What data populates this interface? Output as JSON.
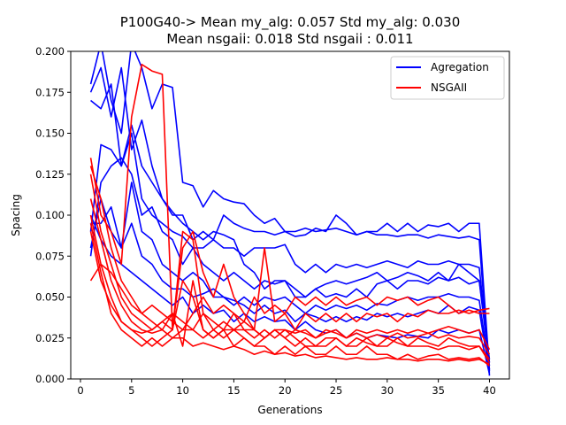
{
  "chart_data": {
    "type": "line",
    "title_lines": [
      "P100G40-> Mean my_alg: 0.057 Std my_alg: 0.030",
      "Mean nsgaii: 0.018 Std nsgaii : 0.011"
    ],
    "xlabel": "Generations",
    "ylabel": "Spacing",
    "xlim": [
      -0.95,
      41.95
    ],
    "ylim": [
      0.0,
      0.2
    ],
    "x_ticks": [
      0,
      5,
      10,
      15,
      20,
      25,
      30,
      35,
      40
    ],
    "x_tick_labels": [
      "0",
      "5",
      "10",
      "15",
      "20",
      "25",
      "30",
      "35",
      "40"
    ],
    "y_ticks": [
      0.0,
      0.025,
      0.05,
      0.075,
      0.1,
      0.125,
      0.15,
      0.175,
      0.2
    ],
    "y_tick_labels": [
      "0.000",
      "0.025",
      "0.050",
      "0.075",
      "0.100",
      "0.125",
      "0.150",
      "0.175",
      "0.200"
    ],
    "legend": [
      {
        "name": "Agregation",
        "color": "#0000ff"
      },
      {
        "name": "NSGAII",
        "color": "#ff0000"
      }
    ],
    "legend_position": "top-right",
    "x": [
      1,
      2,
      3,
      4,
      5,
      6,
      7,
      8,
      9,
      10,
      11,
      12,
      13,
      14,
      15,
      16,
      17,
      18,
      19,
      20,
      21,
      22,
      23,
      24,
      25,
      26,
      27,
      28,
      29,
      30,
      31,
      32,
      33,
      34,
      35,
      36,
      37,
      38,
      39,
      40
    ],
    "series": [
      {
        "name": "Agregation",
        "color": "#0000ff",
        "values": [
          0.18,
          0.205,
          0.17,
          0.15,
          0.205,
          0.19,
          0.165,
          0.18,
          0.178,
          0.12,
          0.118,
          0.105,
          0.115,
          0.11,
          0.108,
          0.107,
          0.1,
          0.095,
          0.098,
          0.09,
          0.09,
          0.092,
          0.09,
          0.091,
          0.092,
          0.09,
          0.088,
          0.09,
          0.088,
          0.088,
          0.087,
          0.088,
          0.088,
          0.086,
          0.088,
          0.087,
          0.086,
          0.087,
          0.085,
          0.002
        ]
      },
      {
        "name": "Agregation",
        "color": "#0000ff",
        "values": [
          0.175,
          0.19,
          0.16,
          0.19,
          0.14,
          0.158,
          0.13,
          0.11,
          0.1,
          0.1,
          0.085,
          0.09,
          0.085,
          0.1,
          0.095,
          0.092,
          0.09,
          0.09,
          0.088,
          0.09,
          0.087,
          0.088,
          0.092,
          0.09,
          0.1,
          0.095,
          0.088,
          0.09,
          0.09,
          0.095,
          0.09,
          0.095,
          0.09,
          0.094,
          0.093,
          0.095,
          0.09,
          0.095,
          0.095,
          0.005
        ]
      },
      {
        "name": "Agregation",
        "color": "#0000ff",
        "values": [
          0.17,
          0.165,
          0.18,
          0.13,
          0.15,
          0.11,
          0.1,
          0.095,
          0.09,
          0.087,
          0.08,
          0.08,
          0.085,
          0.08,
          0.08,
          0.075,
          0.08,
          0.08,
          0.08,
          0.082,
          0.07,
          0.065,
          0.07,
          0.065,
          0.07,
          0.068,
          0.07,
          0.068,
          0.07,
          0.072,
          0.07,
          0.068,
          0.072,
          0.07,
          0.07,
          0.072,
          0.07,
          0.07,
          0.068,
          0.01
        ]
      },
      {
        "name": "Agregation",
        "color": "#0000ff",
        "values": [
          0.09,
          0.143,
          0.14,
          0.13,
          0.155,
          0.13,
          0.12,
          0.11,
          0.102,
          0.095,
          0.09,
          0.085,
          0.09,
          0.088,
          0.085,
          0.07,
          0.065,
          0.055,
          0.06,
          0.06,
          0.055,
          0.05,
          0.055,
          0.058,
          0.06,
          0.058,
          0.06,
          0.062,
          0.065,
          0.06,
          0.062,
          0.065,
          0.063,
          0.06,
          0.065,
          0.06,
          0.07,
          0.065,
          0.06,
          0.008
        ]
      },
      {
        "name": "Agregation",
        "color": "#0000ff",
        "values": [
          0.075,
          0.12,
          0.13,
          0.135,
          0.125,
          0.1,
          0.105,
          0.09,
          0.085,
          0.07,
          0.08,
          0.07,
          0.065,
          0.06,
          0.065,
          0.06,
          0.055,
          0.06,
          0.058,
          0.06,
          0.05,
          0.05,
          0.055,
          0.05,
          0.052,
          0.05,
          0.055,
          0.05,
          0.058,
          0.06,
          0.055,
          0.06,
          0.06,
          0.058,
          0.062,
          0.06,
          0.062,
          0.058,
          0.06,
          0.012
        ]
      },
      {
        "name": "Agregation",
        "color": "#0000ff",
        "values": [
          0.08,
          0.11,
          0.09,
          0.08,
          0.12,
          0.09,
          0.085,
          0.07,
          0.065,
          0.06,
          0.065,
          0.06,
          0.05,
          0.05,
          0.045,
          0.05,
          0.045,
          0.05,
          0.048,
          0.05,
          0.045,
          0.04,
          0.045,
          0.042,
          0.045,
          0.043,
          0.045,
          0.042,
          0.046,
          0.045,
          0.048,
          0.05,
          0.048,
          0.05,
          0.05,
          0.052,
          0.05,
          0.05,
          0.048,
          0.006
        ]
      },
      {
        "name": "Agregation",
        "color": "#0000ff",
        "values": [
          0.095,
          0.095,
          0.105,
          0.08,
          0.095,
          0.075,
          0.07,
          0.06,
          0.055,
          0.055,
          0.05,
          0.052,
          0.055,
          0.05,
          0.048,
          0.045,
          0.04,
          0.045,
          0.04,
          0.042,
          0.035,
          0.04,
          0.038,
          0.035,
          0.038,
          0.035,
          0.038,
          0.036,
          0.04,
          0.038,
          0.04,
          0.038,
          0.04,
          0.042,
          0.04,
          0.045,
          0.04,
          0.044,
          0.042,
          0.004
        ]
      },
      {
        "name": "Agregation",
        "color": "#0000ff",
        "values": [
          0.1,
          0.085,
          0.075,
          0.07,
          0.065,
          0.06,
          0.055,
          0.05,
          0.045,
          0.05,
          0.04,
          0.045,
          0.04,
          0.042,
          0.035,
          0.04,
          0.035,
          0.038,
          0.035,
          0.036,
          0.03,
          0.035,
          0.03,
          0.028,
          0.03,
          0.025,
          0.028,
          0.025,
          0.027,
          0.026,
          0.025,
          0.027,
          0.026,
          0.025,
          0.03,
          0.028,
          0.03,
          0.028,
          0.03,
          0.003
        ]
      },
      {
        "name": "NSGAII",
        "color": "#ff0000",
        "values": [
          0.135,
          0.1,
          0.09,
          0.07,
          0.16,
          0.192,
          0.188,
          0.186,
          0.03,
          0.09,
          0.085,
          0.04,
          0.035,
          0.03,
          0.03,
          0.03,
          0.03,
          0.025,
          0.03,
          0.03,
          0.025,
          0.02,
          0.02,
          0.025,
          0.025,
          0.02,
          0.025,
          0.022,
          0.02,
          0.025,
          0.022,
          0.02,
          0.025,
          0.022,
          0.02,
          0.025,
          0.022,
          0.02,
          0.02,
          0.01
        ]
      },
      {
        "name": "NSGAII",
        "color": "#ff0000",
        "values": [
          0.13,
          0.11,
          0.08,
          0.06,
          0.05,
          0.04,
          0.045,
          0.04,
          0.035,
          0.03,
          0.03,
          0.025,
          0.03,
          0.025,
          0.03,
          0.025,
          0.02,
          0.025,
          0.03,
          0.025,
          0.02,
          0.025,
          0.02,
          0.02,
          0.025,
          0.02,
          0.02,
          0.025,
          0.02,
          0.02,
          0.025,
          0.02,
          0.02,
          0.02,
          0.018,
          0.02,
          0.02,
          0.018,
          0.02,
          0.012
        ]
      },
      {
        "name": "NSGAII",
        "color": "#ff0000",
        "values": [
          0.125,
          0.09,
          0.07,
          0.05,
          0.04,
          0.035,
          0.03,
          0.035,
          0.04,
          0.02,
          0.06,
          0.03,
          0.025,
          0.03,
          0.02,
          0.025,
          0.02,
          0.02,
          0.015,
          0.02,
          0.015,
          0.02,
          0.015,
          0.015,
          0.02,
          0.015,
          0.015,
          0.02,
          0.015,
          0.015,
          0.012,
          0.015,
          0.012,
          0.014,
          0.015,
          0.012,
          0.013,
          0.012,
          0.013,
          0.008
        ]
      },
      {
        "name": "NSGAII",
        "color": "#ff0000",
        "values": [
          0.11,
          0.085,
          0.06,
          0.045,
          0.035,
          0.03,
          0.028,
          0.03,
          0.025,
          0.025,
          0.02,
          0.022,
          0.02,
          0.018,
          0.02,
          0.018,
          0.015,
          0.017,
          0.015,
          0.016,
          0.014,
          0.015,
          0.013,
          0.014,
          0.013,
          0.012,
          0.013,
          0.012,
          0.012,
          0.013,
          0.012,
          0.012,
          0.011,
          0.012,
          0.012,
          0.011,
          0.012,
          0.011,
          0.012,
          0.009
        ]
      },
      {
        "name": "NSGAII",
        "color": "#ff0000",
        "values": [
          0.1,
          0.07,
          0.05,
          0.035,
          0.03,
          0.025,
          0.02,
          0.025,
          0.03,
          0.08,
          0.09,
          0.065,
          0.05,
          0.07,
          0.05,
          0.04,
          0.03,
          0.08,
          0.035,
          0.04,
          0.03,
          0.04,
          0.035,
          0.04,
          0.035,
          0.04,
          0.035,
          0.04,
          0.038,
          0.04,
          0.035,
          0.04,
          0.038,
          0.042,
          0.04,
          0.04,
          0.042,
          0.04,
          0.042,
          0.043
        ]
      },
      {
        "name": "NSGAII",
        "color": "#ff0000",
        "values": [
          0.095,
          0.065,
          0.04,
          0.03,
          0.025,
          0.02,
          0.025,
          0.02,
          0.025,
          0.03,
          0.04,
          0.05,
          0.04,
          0.045,
          0.04,
          0.035,
          0.05,
          0.04,
          0.045,
          0.04,
          0.05,
          0.045,
          0.05,
          0.045,
          0.05,
          0.045,
          0.048,
          0.05,
          0.045,
          0.05,
          0.048,
          0.05,
          0.045,
          0.048,
          0.05,
          0.045,
          0.04,
          0.042,
          0.04,
          0.04
        ]
      },
      {
        "name": "NSGAII",
        "color": "#ff0000",
        "values": [
          0.09,
          0.06,
          0.045,
          0.035,
          0.03,
          0.028,
          0.03,
          0.035,
          0.03,
          0.06,
          0.05,
          0.03,
          0.025,
          0.03,
          0.04,
          0.03,
          0.025,
          0.03,
          0.025,
          0.03,
          0.028,
          0.03,
          0.025,
          0.028,
          0.03,
          0.025,
          0.028,
          0.025,
          0.027,
          0.025,
          0.028,
          0.025,
          0.026,
          0.028,
          0.025,
          0.027,
          0.025,
          0.026,
          0.025,
          0.015
        ]
      },
      {
        "name": "NSGAII",
        "color": "#ff0000",
        "values": [
          0.06,
          0.07,
          0.065,
          0.055,
          0.045,
          0.04,
          0.035,
          0.03,
          0.04,
          0.035,
          0.03,
          0.04,
          0.03,
          0.035,
          0.03,
          0.035,
          0.03,
          0.025,
          0.03,
          0.025,
          0.03,
          0.028,
          0.025,
          0.03,
          0.028,
          0.025,
          0.03,
          0.028,
          0.03,
          0.028,
          0.03,
          0.028,
          0.03,
          0.028,
          0.03,
          0.032,
          0.03,
          0.028,
          0.03,
          0.018
        ]
      }
    ]
  }
}
